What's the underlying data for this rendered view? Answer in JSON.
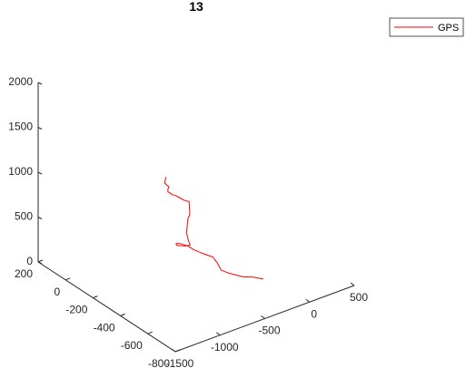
{
  "chart_data": {
    "type": "line",
    "projection": "3d",
    "title": "13",
    "xlabel": "",
    "ylabel": "",
    "zlabel": "",
    "xlim": [
      -1500,
      500
    ],
    "ylim": [
      -800,
      200
    ],
    "zlim": [
      0,
      2000
    ],
    "x_ticks": [
      "-1500",
      "-1000",
      "-500",
      "0",
      "500"
    ],
    "y_ticks": [
      "-800",
      "-600",
      "-400",
      "-200",
      "0",
      "200"
    ],
    "z_ticks": [
      "0",
      "500",
      "1000",
      "1500",
      "2000"
    ],
    "grid": false,
    "legend": {
      "position": "top-right",
      "entries": [
        "GPS"
      ]
    },
    "series": [
      {
        "name": "GPS",
        "color": "#ff0000",
        "points": [
          [
            -110,
            -535,
            32
          ],
          [
            -170,
            -500,
            40
          ],
          [
            -240,
            -470,
            40
          ],
          [
            -300,
            -440,
            60
          ],
          [
            -330,
            -420,
            66
          ],
          [
            -360,
            -390,
            80
          ],
          [
            -340,
            -350,
            110
          ],
          [
            -345,
            -320,
            150
          ],
          [
            -430,
            -300,
            200
          ],
          [
            -500,
            -280,
            250
          ],
          [
            -550,
            -270,
            300
          ],
          [
            -610,
            -240,
            322
          ],
          [
            -650,
            -250,
            339
          ],
          [
            -700,
            -290,
            380
          ],
          [
            -695,
            -330,
            413
          ],
          [
            -690,
            -360,
            442
          ],
          [
            -690,
            -380,
            472
          ],
          [
            -695,
            -370,
            510
          ],
          [
            -700,
            -360,
            590
          ],
          [
            -670,
            -350,
            720
          ],
          [
            -640,
            -345,
            760
          ],
          [
            -625,
            -330,
            880
          ],
          [
            -660,
            -320,
            895
          ],
          [
            -680,
            -300,
            910
          ],
          [
            -700,
            -280,
            925
          ],
          [
            -720,
            -270,
            932
          ],
          [
            -730,
            -260,
            943
          ],
          [
            -740,
            -250,
            953
          ],
          [
            -740,
            -250,
            980
          ],
          [
            -735,
            -255,
            1009
          ],
          [
            -750,
            -250,
            1028
          ],
          [
            -760,
            -240,
            1046
          ],
          [
            -700,
            -210,
            1060
          ]
        ]
      }
    ]
  }
}
